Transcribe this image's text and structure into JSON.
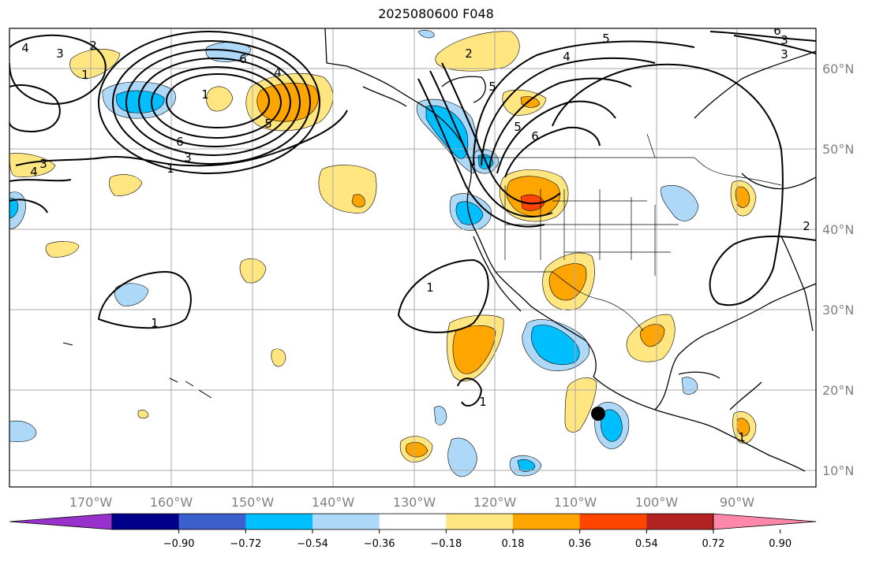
{
  "title": "2025080600 F048",
  "map": {
    "lat_labels": [
      "60°N",
      "50°N",
      "40°N",
      "30°N",
      "20°N",
      "10°N"
    ],
    "lon_labels": [
      "170°W",
      "160°W",
      "150°W",
      "140°W",
      "130°W",
      "120°W",
      "110°W",
      "100°W",
      "90°W"
    ]
  },
  "colorbar": {
    "colors": [
      "#9932cc",
      "#00008b",
      "#3b5fcd",
      "#00bfff",
      "#add8f8",
      "#ffffff",
      "#ffe680",
      "#ffa500",
      "#ff4500",
      "#b22222",
      "#ff88aa"
    ],
    "tick_labels": [
      "−0.90",
      "−0.72",
      "−0.54",
      "−0.36",
      "−0.18",
      "0.18",
      "0.36",
      "0.54",
      "0.72",
      "0.90"
    ]
  },
  "contour_labels": [
    "4",
    "3",
    "2",
    "1",
    "6",
    "5",
    "4",
    "3",
    "6",
    "1",
    "4",
    "3",
    "1",
    "1",
    "1",
    "2",
    "5",
    "4",
    "5",
    "6",
    "5",
    "6",
    "3",
    "3",
    "2",
    "1",
    "1"
  ]
}
